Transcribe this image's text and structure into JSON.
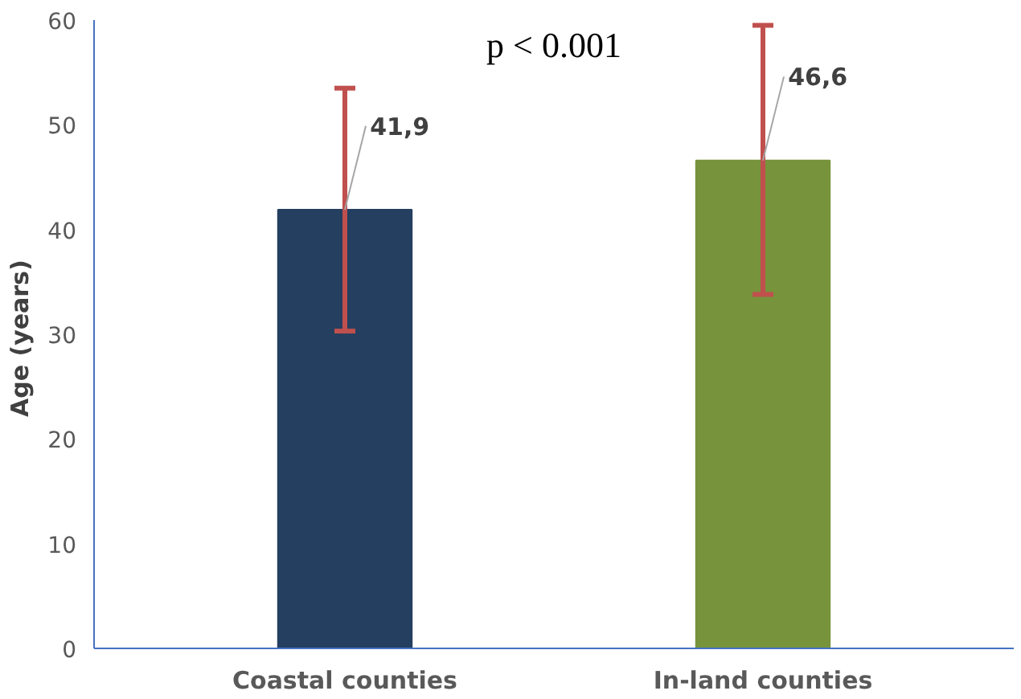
{
  "chart_data": {
    "type": "bar",
    "ylabel": "Age  (years)",
    "categories": [
      "Coastal counties",
      "In-land counties"
    ],
    "values": [
      41.9,
      46.6
    ],
    "colors": [
      "#243f60",
      "#77933c"
    ],
    "errors": [
      [
        30.3,
        53.5
      ],
      [
        33.8,
        59.5
      ]
    ],
    "value_labels": [
      "41,9",
      "46,6"
    ],
    "ylim": [
      0,
      60
    ],
    "yticks": [
      0,
      10,
      20,
      30,
      40,
      50,
      60
    ],
    "grid": false,
    "annotations": [
      "p < 0.001"
    ]
  }
}
